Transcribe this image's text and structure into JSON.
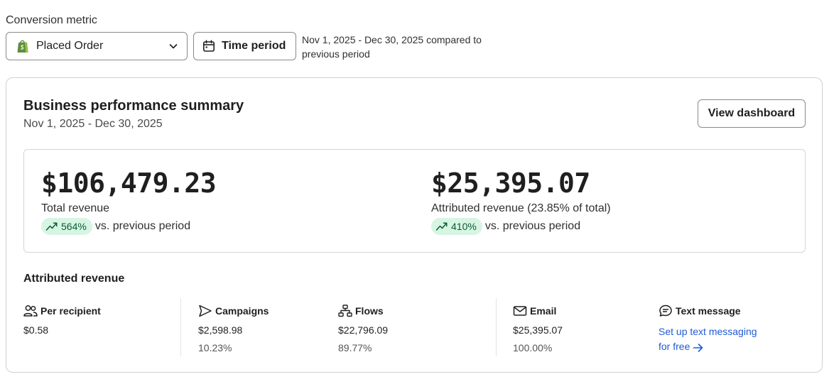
{
  "conversion": {
    "label": "Conversion metric",
    "selected": "Placed Order",
    "icon": "shopify-bag-icon"
  },
  "time_period": {
    "button_label": "Time period",
    "note": "Nov 1, 2025 - Dec 30, 2025 compared to previous period"
  },
  "summary": {
    "title": "Business performance summary",
    "date_range": "Nov 1, 2025 - Dec 30, 2025",
    "view_button": "View dashboard"
  },
  "kpis": [
    {
      "value": "$106,479.23",
      "label": "Total revenue",
      "change": "564%",
      "compare": "vs. previous period"
    },
    {
      "value": "$25,395.07",
      "label": "Attributed revenue (23.85% of total)",
      "change": "410%",
      "compare": "vs. previous period"
    }
  ],
  "attributed": {
    "title": "Attributed revenue",
    "metrics": [
      {
        "name": "Per recipient",
        "icon": "users-icon",
        "value": "$0.58"
      },
      {
        "name": "Campaigns",
        "icon": "send-icon",
        "value": "$2,598.98",
        "pct": "10.23%"
      },
      {
        "name": "Flows",
        "icon": "flow-icon",
        "value": "$22,796.09",
        "pct": "89.77%"
      },
      {
        "name": "Email",
        "icon": "mail-icon",
        "value": "$25,395.07",
        "pct": "100.00%"
      },
      {
        "name": "Text message",
        "icon": "chat-icon",
        "link": "Set up text messaging for free"
      }
    ]
  },
  "colors": {
    "accent_link": "#1f5bd6",
    "badge_bg": "#d7f5e3",
    "badge_text": "#0b5b33",
    "shopify_green": "#5e8e3e"
  }
}
